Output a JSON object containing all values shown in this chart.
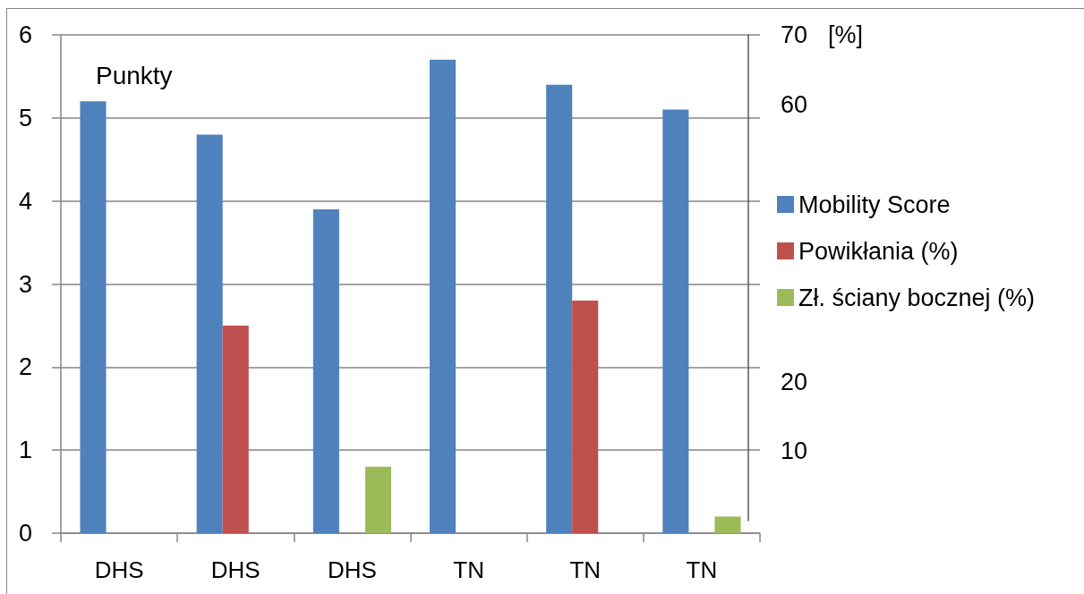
{
  "chart_data": {
    "type": "bar",
    "ylabel": "Punkty",
    "y2label": "[%]",
    "categories": [
      "DHS",
      "DHS",
      "DHS",
      "TN",
      "TN",
      "TN"
    ],
    "series": [
      {
        "name": "Mobility Score",
        "color": "#4f81bd",
        "values": [
          5.2,
          4.8,
          3.9,
          5.7,
          5.4,
          5.1
        ]
      },
      {
        "name": "Powikłania (%)",
        "color": "#c0504d",
        "values": [
          null,
          2.5,
          null,
          null,
          2.8,
          null
        ]
      },
      {
        "name": "Zł. ściany bocznej (%)",
        "color": "#9bbb59",
        "values": [
          null,
          null,
          0.8,
          null,
          null,
          0.2
        ]
      }
    ],
    "ylim": [
      0,
      6
    ],
    "yticks": [
      0,
      1,
      2,
      3,
      4,
      5,
      6
    ],
    "y2lim": [
      0,
      70
    ],
    "y2ticks": [
      10,
      20,
      60,
      70
    ],
    "grid": "y",
    "legend": "right"
  }
}
